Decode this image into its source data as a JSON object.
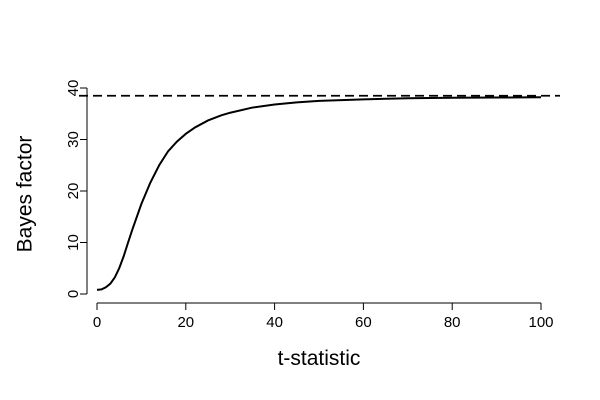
{
  "chart_data": {
    "type": "line",
    "title": "",
    "xlabel": "t-statistic",
    "ylabel": "Bayes factor",
    "xlim": [
      0,
      100
    ],
    "ylim": [
      0,
      40
    ],
    "xticks": [
      0,
      20,
      40,
      60,
      80,
      100
    ],
    "yticks": [
      0,
      10,
      20,
      30,
      40
    ],
    "grid": false,
    "series": [
      {
        "line_style": "solid",
        "color": "#000000",
        "x": [
          0,
          1,
          2,
          3,
          4,
          5,
          6,
          7,
          8,
          10,
          12,
          14,
          16,
          18,
          20,
          22,
          25,
          28,
          30,
          35,
          40,
          45,
          50,
          60,
          70,
          80,
          90,
          100
        ],
        "y": [
          0.8,
          0.9,
          1.3,
          2.0,
          3.2,
          5.0,
          7.3,
          10.0,
          12.6,
          17.5,
          21.6,
          25.0,
          27.7,
          29.6,
          31.1,
          32.3,
          33.7,
          34.7,
          35.2,
          36.2,
          36.8,
          37.2,
          37.5,
          37.8,
          38.0,
          38.1,
          38.15,
          38.2
        ]
      }
    ],
    "reference_lines": [
      {
        "orientation": "horizontal",
        "y": 38.5,
        "line_style": "dashed",
        "color": "#000000"
      }
    ]
  }
}
